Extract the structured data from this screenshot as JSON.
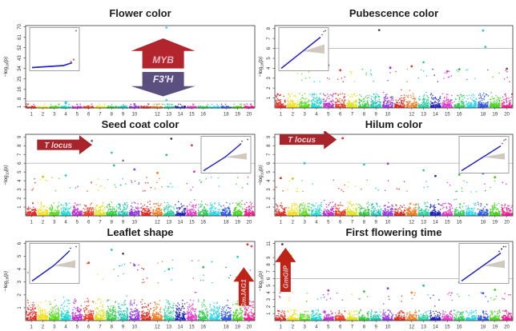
{
  "figure": {
    "background": "#ffffff",
    "box_stroke": "#4d4d4d",
    "threshold_color": "#b9b9b9",
    "qq_line_color": "#2424c4",
    "qq_fan_color": "#c7bfb4",
    "title_color": "#1c1c1c"
  },
  "axis": {
    "ylab_prefix": "−log",
    "ylab_sub": "10",
    "ylab_suffix": "(p)",
    "chr_labels": [
      "1",
      "2",
      "3",
      "4",
      "5",
      "6",
      "7",
      "8",
      "9",
      "10",
      "",
      "12",
      "13",
      "14",
      "15",
      "16",
      "",
      "18",
      "19",
      "20"
    ]
  },
  "palette": [
    "#e8231f",
    "#f2de0a",
    "#55dd13",
    "#14d7cf",
    "#bd2ad1",
    "#ee3a20",
    "#dde212",
    "#2ecb3a",
    "#16c4ae",
    "#9232e3",
    "#e02517",
    "#f07718",
    "#1fcf9a",
    "#1b1fc0",
    "#e431c8",
    "#2ecb55",
    "#1ed3e8",
    "#2b54e0",
    "#3ed414",
    "#f0188e"
  ],
  "chart_data": [
    {
      "type": "manhattan-scatter",
      "title": "Flower color",
      "ylabel": "-log10(p)",
      "x_categories": "chromosomes 1-20",
      "ymax": 71,
      "yticks": [
        1,
        8,
        16,
        25,
        34,
        43,
        52,
        61,
        70
      ],
      "threshold": 6,
      "noise": {
        "per_chr": 75,
        "scale": 0.5,
        "cap": 3.3,
        "tail": 0.4
      },
      "peaks": [
        {
          "chr": 13,
          "y": 69.3,
          "color": "#3fd9d9",
          "dx": -3
        },
        {
          "chr": 13,
          "y": 6.7,
          "color": "#3fd9d9",
          "dx": -3
        },
        {
          "chr": 4,
          "y": 4.9,
          "color": "#23cfc7"
        },
        {
          "chr": 4,
          "y": 4.1,
          "color": "#23cfc7"
        },
        {
          "chr": 10,
          "y": 3.2,
          "color": "#cf3fd0"
        }
      ],
      "qq": {
        "pos": "tl",
        "style": "flat"
      },
      "annotations": [
        {
          "kind": "up",
          "label": "MYB",
          "fill": "#b2252c",
          "textFill": "#f2bac6",
          "fontSize": 12,
          "xf": 0.6,
          "vTop": 60,
          "vBot": 34,
          "bodyW": 52,
          "headW": 80
        },
        {
          "kind": "down",
          "label": "F3'H",
          "fill": "#5b4f80",
          "textFill": "#eceaf4",
          "fontSize": 12,
          "xf": 0.6,
          "vTop": 31,
          "vBot": 10,
          "bodyW": 52,
          "headW": 80
        }
      ]
    },
    {
      "type": "manhattan-scatter",
      "title": "Pubescence color",
      "ylabel": "-log10(p)",
      "x_categories": "chromosomes 1-20",
      "ymax": 8.3,
      "yticks": [
        1,
        2,
        3,
        4,
        5,
        6,
        7,
        8
      ],
      "threshold": 6,
      "noise": {
        "per_chr": 80,
        "scale": 0.6,
        "cap": 2.9,
        "tail": 1.3
      },
      "peaks": [
        {
          "chr": 9,
          "y": 7.85,
          "color": "#4a4a55",
          "dx": 4
        },
        {
          "chr": 18,
          "y": 7.8,
          "color": "#35c9ad"
        },
        {
          "chr": 18,
          "y": 6.15,
          "color": "#35c9ad",
          "dx": 3
        },
        {
          "chr": 13,
          "y": 4.6,
          "color": "#35c9ad"
        },
        {
          "chr": 3,
          "y": 4.4,
          "color": "#50505c"
        },
        {
          "chr": 5,
          "y": 4.3,
          "color": "#8b2fd6"
        },
        {
          "chr": 12,
          "y": 4.2,
          "color": "#cf4428"
        },
        {
          "chr": 10,
          "y": 4.05,
          "color": "#8b2fd6",
          "dx": 3
        },
        {
          "chr": 16,
          "y": 3.9,
          "color": "#30b84d"
        },
        {
          "chr": 20,
          "y": 3.95,
          "color": "#555555"
        },
        {
          "chr": 6,
          "y": 3.8,
          "color": "#e03323"
        },
        {
          "chr": 15,
          "y": 3.7,
          "color": "#d633c0"
        }
      ],
      "qq": {
        "pos": "tl",
        "style": "rise"
      },
      "annotations": []
    },
    {
      "type": "manhattan-scatter",
      "title": "Seed coat color",
      "ylabel": "-log10(p)",
      "x_categories": "chromosomes 1-20",
      "ymax": 9.3,
      "yticks": [
        1,
        2,
        3,
        4,
        5,
        6,
        7,
        8,
        9
      ],
      "threshold": 6,
      "noise": {
        "per_chr": 85,
        "scale": 0.65,
        "cap": 3.1,
        "tail": 1.6
      },
      "peaks": [
        {
          "chr": 6,
          "y": 8.55,
          "color": "#6f6f78",
          "dx": 4
        },
        {
          "chr": 13,
          "y": 8.8,
          "color": "#3c3c50",
          "dx": 3
        },
        {
          "chr": 15,
          "y": 8.05,
          "color": "#e04438"
        },
        {
          "chr": 8,
          "y": 7.2,
          "color": "#28c9c9"
        },
        {
          "chr": 13,
          "y": 6.95,
          "color": "#2bb896",
          "dx": -3
        },
        {
          "chr": 9,
          "y": 6.3,
          "color": "#84848e"
        },
        {
          "chr": 8,
          "y": 5.75,
          "color": "#2bb896",
          "dx": 3
        },
        {
          "chr": 10,
          "y": 5.3,
          "color": "#8f3be0"
        },
        {
          "chr": 15,
          "y": 5.05,
          "color": "#d633c0",
          "dx": 3
        },
        {
          "chr": 12,
          "y": 4.9,
          "color": "#ef7d18"
        },
        {
          "chr": 4,
          "y": 4.6,
          "color": "#1ecfc7"
        },
        {
          "chr": 2,
          "y": 4.45,
          "color": "#d8c410"
        }
      ],
      "qq": {
        "pos": "tr",
        "style": "bend"
      },
      "annotations": [
        {
          "kind": "right",
          "label": "T locus",
          "fill": "#a8232a",
          "textFill": "#f3d9d9",
          "fontSize": 10,
          "xf1": 0.05,
          "xf2": 0.29,
          "v": 8.1,
          "bodyH": 13,
          "headH": 24
        }
      ]
    },
    {
      "type": "manhattan-scatter",
      "title": "Hilum color",
      "ylabel": "-log10(p)",
      "x_categories": "chromosomes 1-20",
      "ymax": 9.3,
      "yticks": [
        1,
        2,
        3,
        4,
        5,
        6,
        7,
        8,
        9
      ],
      "threshold": 6,
      "noise": {
        "per_chr": 85,
        "scale": 0.6,
        "cap": 3.0,
        "tail": 1.5
      },
      "peaks": [
        {
          "chr": 6,
          "y": 8.85,
          "color": "#e02a22",
          "dx": 3
        },
        {
          "chr": 3,
          "y": 6.0,
          "color": "#3bc4ad"
        },
        {
          "chr": 8,
          "y": 5.85,
          "color": "#3bc4ad"
        },
        {
          "chr": 10,
          "y": 5.95,
          "color": "#9440e8"
        },
        {
          "chr": 13,
          "y": 5.2,
          "color": "#3bc4ad"
        },
        {
          "chr": 16,
          "y": 4.7,
          "color": "#34bf52"
        },
        {
          "chr": 14,
          "y": 4.55,
          "color": "#2528b8"
        },
        {
          "chr": 18,
          "y": 4.85,
          "color": "#3058dd"
        },
        {
          "chr": 19,
          "y": 4.4,
          "color": "#3fcc18"
        },
        {
          "chr": 2,
          "y": 4.25,
          "color": "#d8c410"
        },
        {
          "chr": 1,
          "y": 4.3,
          "color": "#dd2a24"
        }
      ],
      "qq": {
        "pos": "tr",
        "style": "rise"
      },
      "annotations": [
        {
          "kind": "right",
          "label": "T locus",
          "fill": "#a8232a",
          "textFill": "#f3d9d9",
          "fontSize": 10,
          "xf1": 0.02,
          "xf2": 0.26,
          "v": 8.7,
          "bodyH": 13,
          "headH": 24
        }
      ]
    },
    {
      "type": "manhattan-scatter",
      "title": "Leaflet shape",
      "ylabel": "-log10(p)",
      "x_categories": "chromosomes 1-20",
      "ymax": 6.15,
      "yticks": [
        1,
        2,
        3,
        4,
        5,
        6
      ],
      "threshold": null,
      "noise": {
        "per_chr": 95,
        "scale": 0.72,
        "cap": 3.2,
        "tail": 1.8
      },
      "peaks": [
        {
          "chr": 20,
          "y": 5.92,
          "color": "#e03434",
          "dx": -2
        },
        {
          "chr": 20,
          "y": 5.78,
          "color": "#ef35a8",
          "dx": 3
        },
        {
          "chr": 8,
          "y": 5.5,
          "color": "#28c4b4"
        },
        {
          "chr": 9,
          "y": 5.2,
          "color": "#46505a"
        },
        {
          "chr": 19,
          "y": 4.95,
          "color": "#2bc9dd"
        },
        {
          "chr": 6,
          "y": 4.5,
          "color": "#e04328"
        },
        {
          "chr": 10,
          "y": 4.3,
          "color": "#8f3be0"
        },
        {
          "chr": 16,
          "y": 4.15,
          "color": "#34bf52"
        },
        {
          "chr": 13,
          "y": 4.0,
          "color": "#2bb896"
        },
        {
          "chr": 2,
          "y": 4.2,
          "color": "#d8c410"
        },
        {
          "chr": 5,
          "y": 3.9,
          "color": "#b32fd1"
        }
      ],
      "qq": {
        "pos": "tl",
        "style": "bend"
      },
      "annotations": [
        {
          "kind": "up",
          "rotText": true,
          "label": "GmJAG1",
          "fill": "#bf2318",
          "textFill": "#f2c6c6",
          "fontSize": 8.5,
          "xf": 0.952,
          "vTop": 4.15,
          "vBot": 1.15,
          "bodyW": 13,
          "headW": 26
        }
      ]
    },
    {
      "type": "manhattan-scatter",
      "title": "First flowering time",
      "ylabel": "-log10(p)",
      "x_categories": "chromosomes 1-20",
      "ymax": 11.3,
      "yticks": [
        1,
        2,
        3,
        4,
        5,
        6,
        7,
        8,
        9,
        11
      ],
      "threshold": 6,
      "noise": {
        "per_chr": 85,
        "scale": 0.55,
        "cap": 3.0,
        "tail": 1.3
      },
      "peaks": [
        {
          "chr": 1,
          "y": 10.9,
          "color": "#3a3340",
          "dx": 2
        },
        {
          "chr": 2,
          "y": 9.3,
          "color": "#e8c414",
          "dx": -2
        },
        {
          "chr": 16,
          "y": 5.5,
          "color": "#34bf52"
        },
        {
          "chr": 13,
          "y": 5.0,
          "color": "#2bb896"
        },
        {
          "chr": 10,
          "y": 4.6,
          "color": "#8f3be0"
        },
        {
          "chr": 19,
          "y": 4.4,
          "color": "#3fcc18"
        },
        {
          "chr": 5,
          "y": 4.3,
          "color": "#b32fd1"
        },
        {
          "chr": 8,
          "y": 4.15,
          "color": "#30c441"
        },
        {
          "chr": 12,
          "y": 4.0,
          "color": "#ef7d18"
        },
        {
          "chr": 18,
          "y": 3.9,
          "color": "#3058dd"
        }
      ],
      "qq": {
        "pos": "tr",
        "style": "rise-dots"
      },
      "annotations": [
        {
          "kind": "up",
          "rotText": true,
          "label": "GmGIP",
          "fill": "#bf2318",
          "textFill": "#f2c6c6",
          "fontSize": 8.5,
          "xf": 0.045,
          "vTop": 10.4,
          "vBot": 4.1,
          "bodyW": 13,
          "headW": 26
        }
      ]
    }
  ]
}
